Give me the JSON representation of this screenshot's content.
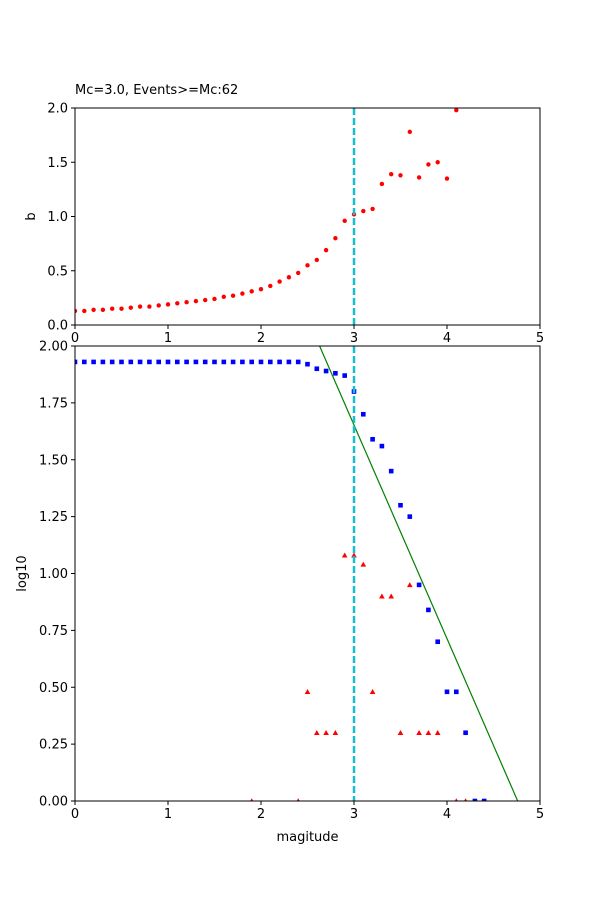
{
  "chart_data": [
    {
      "type": "scatter",
      "title": "Mc=3.0, Events>=Mc:62",
      "xlabel": "",
      "ylabel": "b",
      "xlim": [
        0,
        5
      ],
      "ylim": [
        0,
        2.0
      ],
      "xticks": [
        "0",
        "1",
        "2",
        "3",
        "4",
        "5"
      ],
      "yticks": [
        "0.0",
        "0.5",
        "1.0",
        "1.5",
        "2.0"
      ],
      "grid": false,
      "colors": {
        "points": "#ff0000",
        "mc_line": "#17becf"
      },
      "mc": 3.0,
      "series": [
        {
          "marker": "circle",
          "x": [
            0.0,
            0.1,
            0.2,
            0.3,
            0.4,
            0.5,
            0.6,
            0.7,
            0.8,
            0.9,
            1.0,
            1.1,
            1.2,
            1.3,
            1.4,
            1.5,
            1.6,
            1.7,
            1.8,
            1.9,
            2.0,
            2.1,
            2.2,
            2.3,
            2.4,
            2.5,
            2.6,
            2.7,
            2.8,
            2.9,
            3.0,
            3.1,
            3.2,
            3.3,
            3.4,
            3.5,
            3.6,
            3.7,
            3.8,
            3.9,
            4.0,
            4.1
          ],
          "y": [
            0.13,
            0.13,
            0.14,
            0.14,
            0.15,
            0.15,
            0.16,
            0.17,
            0.17,
            0.18,
            0.19,
            0.2,
            0.21,
            0.22,
            0.23,
            0.24,
            0.26,
            0.27,
            0.29,
            0.31,
            0.33,
            0.36,
            0.4,
            0.44,
            0.48,
            0.55,
            0.6,
            0.69,
            0.8,
            0.96,
            1.02,
            1.05,
            1.07,
            1.3,
            1.39,
            1.38,
            1.78,
            1.36,
            1.48,
            1.5,
            1.35,
            1.98
          ]
        }
      ]
    },
    {
      "type": "scatter",
      "title": "",
      "xlabel": "magitude",
      "ylabel": "log10",
      "xlim": [
        0,
        5
      ],
      "ylim": [
        0,
        2.0
      ],
      "xticks": [
        "0",
        "1",
        "2",
        "3",
        "4",
        "5"
      ],
      "yticks": [
        "0.00",
        "0.25",
        "0.50",
        "0.75",
        "1.00",
        "1.25",
        "1.50",
        "1.75",
        "2.00"
      ],
      "grid": false,
      "colors": {
        "cumulative": "#0000ff",
        "noncumulative": "#ff0000",
        "fit": "#008000",
        "mc_line": "#17becf"
      },
      "mc": 3.0,
      "fit_line": {
        "x": [
          2.63,
          4.76
        ],
        "y": [
          2.0,
          0.0
        ]
      },
      "series": [
        {
          "marker": "square",
          "x": [
            0.0,
            0.1,
            0.2,
            0.3,
            0.4,
            0.5,
            0.6,
            0.7,
            0.8,
            0.9,
            1.0,
            1.1,
            1.2,
            1.3,
            1.4,
            1.5,
            1.6,
            1.7,
            1.8,
            1.9,
            2.0,
            2.1,
            2.2,
            2.3,
            2.4,
            2.5,
            2.6,
            2.7,
            2.8,
            2.9,
            3.0,
            3.1,
            3.2,
            3.3,
            3.4,
            3.5,
            3.6,
            3.7,
            3.8,
            3.9,
            4.0,
            4.1,
            4.2,
            4.3,
            4.4
          ],
          "y": [
            1.93,
            1.93,
            1.93,
            1.93,
            1.93,
            1.93,
            1.93,
            1.93,
            1.93,
            1.93,
            1.93,
            1.93,
            1.93,
            1.93,
            1.93,
            1.93,
            1.93,
            1.93,
            1.93,
            1.93,
            1.93,
            1.93,
            1.93,
            1.93,
            1.93,
            1.92,
            1.9,
            1.89,
            1.88,
            1.87,
            1.8,
            1.7,
            1.59,
            1.56,
            1.45,
            1.3,
            1.25,
            0.95,
            0.84,
            0.7,
            0.48,
            0.48,
            0.3,
            0.0,
            0.0
          ]
        },
        {
          "marker": "triangle",
          "x": [
            1.9,
            2.4,
            2.5,
            2.6,
            2.7,
            2.8,
            2.9,
            3.0,
            3.1,
            3.2,
            3.3,
            3.4,
            3.5,
            3.6,
            3.7,
            3.8,
            3.9,
            4.1,
            4.2
          ],
          "y": [
            0.0,
            0.0,
            0.48,
            0.3,
            0.3,
            0.3,
            1.08,
            1.08,
            1.04,
            0.48,
            0.9,
            0.9,
            0.3,
            0.95,
            0.3,
            0.3,
            0.3,
            0.0,
            0.0
          ]
        }
      ]
    }
  ]
}
